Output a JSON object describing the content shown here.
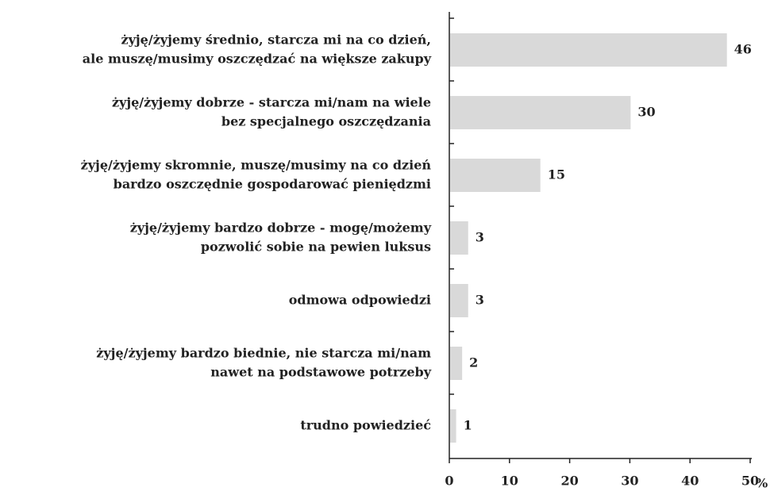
{
  "chart_data": {
    "type": "bar",
    "orientation": "horizontal",
    "categories": [
      [
        "żyję/żyjemy średnio, starcza mi na co dzień,",
        "ale muszę/musimy oszczędzać na większe zakupy"
      ],
      [
        "żyję/żyjemy dobrze - starcza mi/nam na wiele",
        "bez specjalnego oszczędzania"
      ],
      [
        "żyję/żyjemy skromnie, muszę/musimy na co dzień",
        "bardzo oszczędnie gospodarować pieniędzmi"
      ],
      [
        "żyję/żyjemy bardzo dobrze - mogę/możemy",
        "pozwolić sobie na pewien luksus"
      ],
      [
        "odmowa odpowiedzi"
      ],
      [
        "żyję/żyjemy bardzo biednie, nie starcza mi/nam",
        "nawet na podstawowe potrzeby"
      ],
      [
        "trudno powiedzieć"
      ]
    ],
    "values": [
      46,
      30,
      15,
      3,
      3,
      2,
      1
    ],
    "color": "#d9d9d9",
    "xlabel": "%",
    "xlim": [
      0,
      50
    ],
    "xticks": [
      0,
      10,
      20,
      30,
      40,
      50
    ]
  }
}
